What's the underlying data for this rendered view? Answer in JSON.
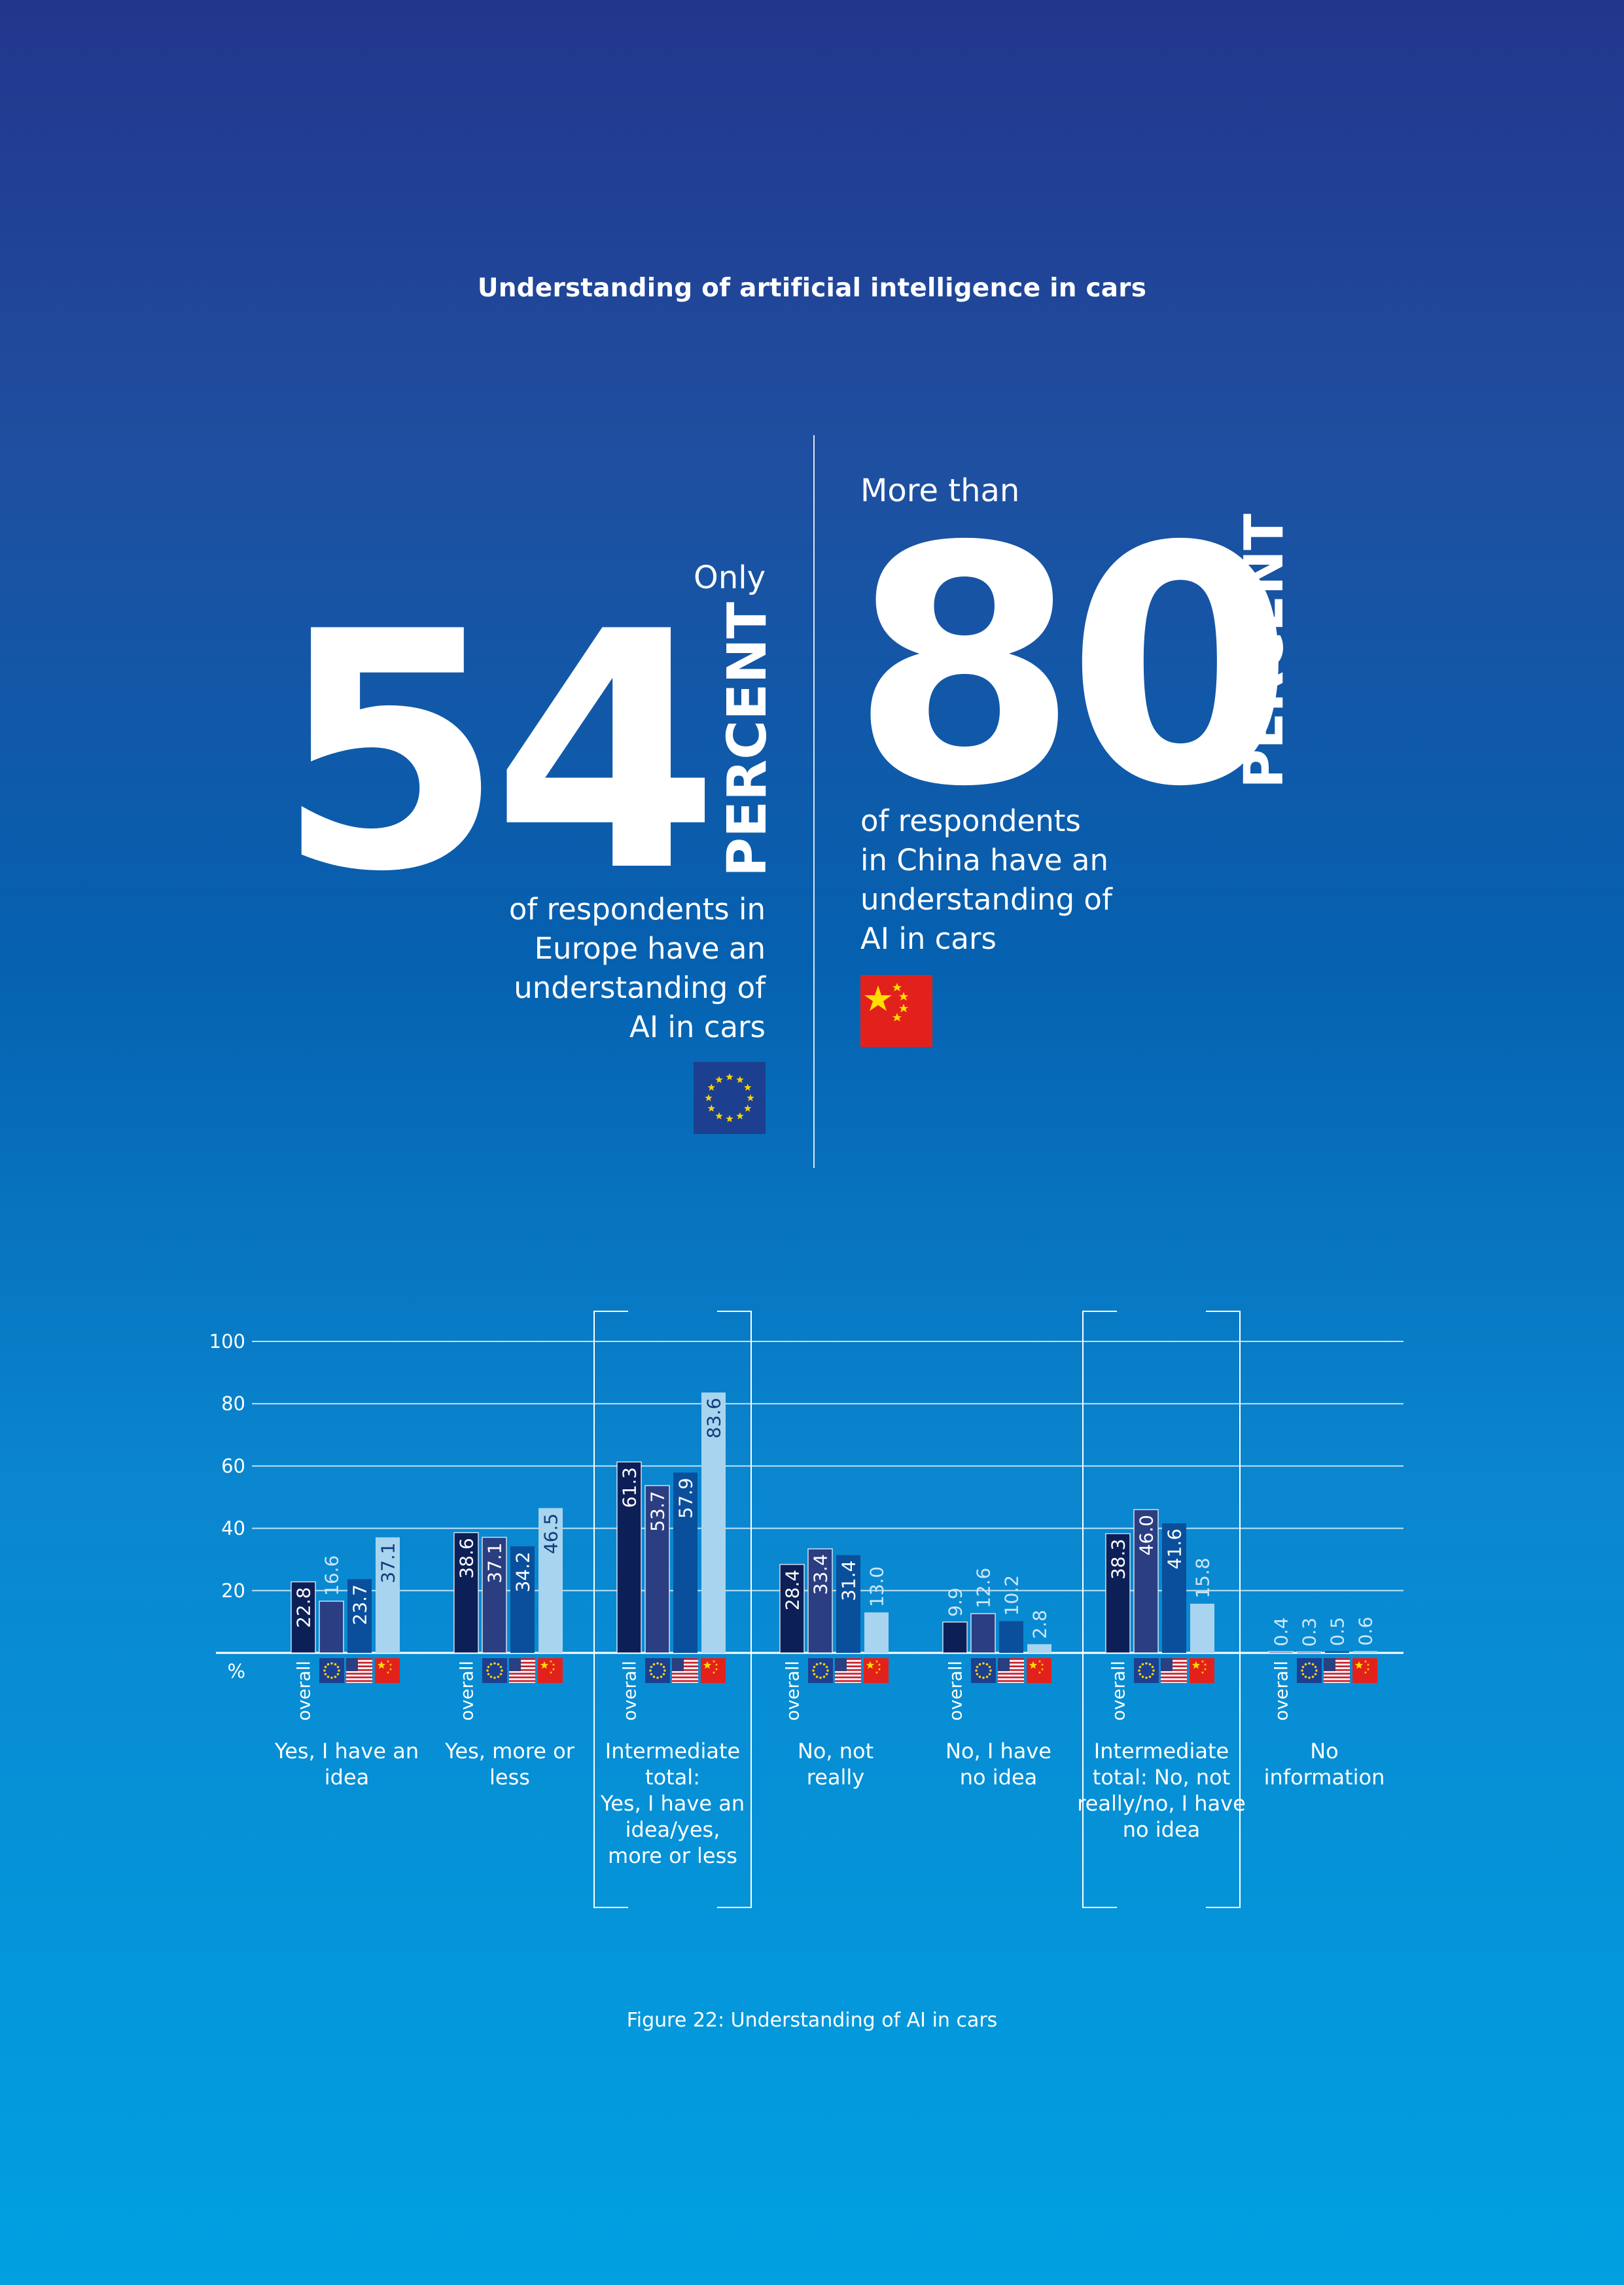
{
  "title": "Understanding of artificial intelligence in cars",
  "europe": {
    "lead": "Only",
    "number": "54",
    "unit": "PERCENT",
    "lines": [
      "of respondents in",
      "Europe have an",
      "understanding of",
      "AI in cars"
    ]
  },
  "china": {
    "lead": "More than",
    "number": "80",
    "unit": "PERCENT",
    "lines": [
      "of respondents",
      "in China have an",
      "understanding of",
      "AI in cars"
    ]
  },
  "caption": "Figure 22: Understanding of AI in cars",
  "colors": {
    "overall": "#0d1f57",
    "europe": "#2b3e82",
    "usa": "#0a4f9c",
    "china": "#a8d4ef"
  },
  "chart_data": {
    "type": "bar",
    "categories": [
      [
        "Yes, I have an",
        "idea"
      ],
      [
        "Yes, more or",
        "less"
      ],
      [
        "Intermediate",
        "total:",
        "Yes, I have an",
        "idea/yes,",
        "more or less"
      ],
      [
        "No, not",
        "really"
      ],
      [
        "No, I have",
        "no idea"
      ],
      [
        "Intermediate",
        "total: No, not",
        "really/no, I have",
        "no idea"
      ],
      [
        "No",
        "information"
      ]
    ],
    "highlighted": [
      2,
      5
    ],
    "group_labels": [
      "overall",
      "flag-eu-icon",
      "flag-us-icon",
      "flag-cn-icon"
    ],
    "series": [
      {
        "name": "overall",
        "values": [
          22.8,
          38.6,
          61.3,
          28.4,
          9.9,
          38.3,
          0.4
        ]
      },
      {
        "values": [
          16.6,
          37.1,
          53.7,
          33.4,
          12.6,
          46.0,
          0.3
        ]
      },
      {
        "values": [
          23.7,
          34.2,
          57.9,
          31.4,
          10.2,
          41.6,
          0.5
        ]
      },
      {
        "values": [
          37.1,
          46.5,
          83.6,
          13.0,
          2.8,
          15.8,
          0.6
        ]
      }
    ],
    "yticks": [
      "100",
      "80",
      "60",
      "40",
      "20"
    ],
    "ylabel": "%",
    "ylim": [
      0,
      100
    ],
    "grid": true
  }
}
